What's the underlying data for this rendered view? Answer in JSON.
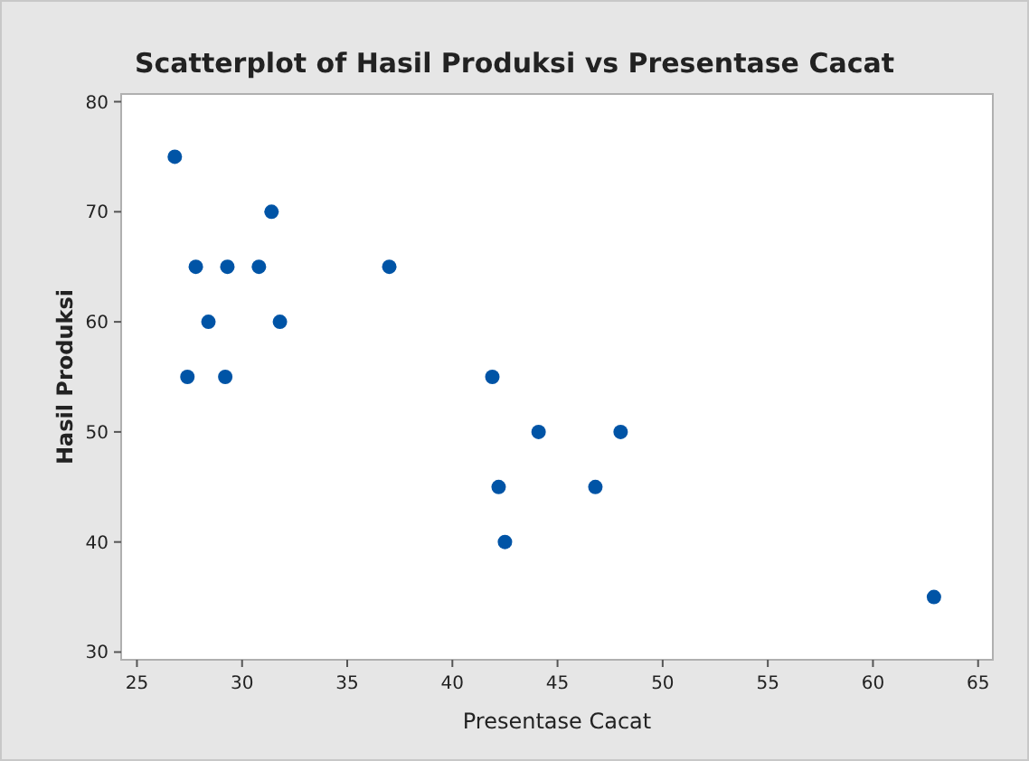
{
  "chart_data": {
    "type": "scatter",
    "title": "Scatterplot of Hasil Produksi vs Presentase Cacat",
    "xlabel": "Presentase Cacat",
    "ylabel": "Hasil Produksi",
    "x": [
      26.8,
      27.8,
      29.3,
      30.8,
      31.4,
      28.4,
      31.8,
      27.4,
      29.2,
      37.0,
      41.9,
      44.1,
      48.0,
      42.2,
      46.8,
      42.5,
      62.9
    ],
    "values": [
      75,
      65,
      65,
      65,
      70,
      60,
      60,
      55,
      55,
      65,
      55,
      50,
      50,
      45,
      45,
      40,
      35
    ],
    "color": "#0054a6",
    "marker": "circle",
    "xlim": [
      24.25,
      65.7
    ],
    "ylim": [
      29.3,
      80.7
    ],
    "xticks": [
      25,
      30,
      35,
      40,
      45,
      50,
      55,
      60,
      65
    ],
    "yticks": [
      30,
      40,
      50,
      60,
      70,
      80
    ],
    "grid": false
  }
}
